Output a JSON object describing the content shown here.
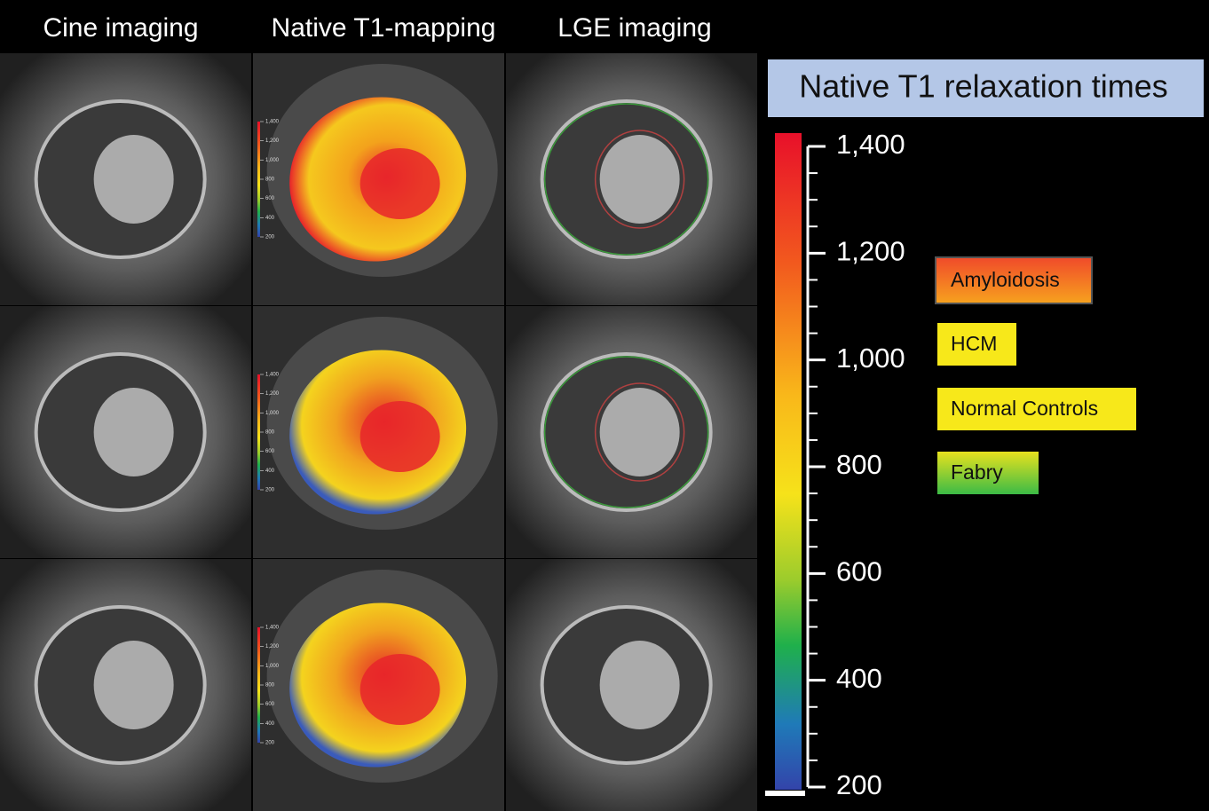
{
  "column_titles": [
    "Cine imaging",
    "Native T1-mapping",
    "LGE imaging"
  ],
  "scale": {
    "title": "Native T1 relaxation times",
    "ylim": [
      200,
      1400
    ],
    "yticks": [
      200,
      400,
      600,
      800,
      {
        "value": 1000,
        "label": "1,000"
      },
      {
        "value": 1200,
        "label": "1,200"
      },
      {
        "value": 1400,
        "label": "1,400"
      }
    ]
  },
  "legend": [
    "Amyloidosis",
    "HCM",
    "Normal Controls",
    "Fabry"
  ]
}
